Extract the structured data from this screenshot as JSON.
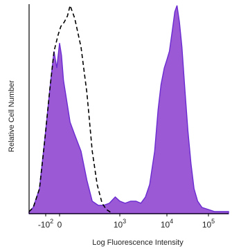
{
  "chart_data": {
    "type": "area",
    "title": "",
    "xlabel": "Log Fluorescence Intensity",
    "ylabel": "Relative Cell Number",
    "x_scale": "biexponential",
    "xlim": [
      -300,
      300000
    ],
    "ylim": [
      0,
      100
    ],
    "grid": false,
    "legend": "none",
    "x_ticks": [
      {
        "value": -100,
        "base": "-10",
        "exp": "2"
      },
      {
        "value": 0,
        "base": "0",
        "exp": ""
      },
      {
        "value": 1000,
        "base": "10",
        "exp": "3"
      },
      {
        "value": 10000,
        "base": "10",
        "exp": "4"
      },
      {
        "value": 100000,
        "base": "10",
        "exp": "5"
      }
    ],
    "series": [
      {
        "style": "filled",
        "color": "#9b59d6",
        "edge_color": "#6a2bd0",
        "points": [
          [
            -290,
            1
          ],
          [
            -220,
            3
          ],
          [
            -160,
            12
          ],
          [
            -100,
            40
          ],
          [
            -70,
            60
          ],
          [
            -40,
            78
          ],
          [
            -20,
            70
          ],
          [
            0,
            82
          ],
          [
            15,
            76
          ],
          [
            30,
            64
          ],
          [
            50,
            56
          ],
          [
            80,
            44
          ],
          [
            110,
            38
          ],
          [
            150,
            30
          ],
          [
            200,
            16
          ],
          [
            260,
            6
          ],
          [
            350,
            4
          ],
          [
            450,
            4
          ],
          [
            600,
            5
          ],
          [
            800,
            8
          ],
          [
            1000,
            6
          ],
          [
            1300,
            5
          ],
          [
            1700,
            6
          ],
          [
            2200,
            6
          ],
          [
            2800,
            5
          ],
          [
            3500,
            8
          ],
          [
            4300,
            14
          ],
          [
            5500,
            30
          ],
          [
            6500,
            50
          ],
          [
            7500,
            62
          ],
          [
            8800,
            70
          ],
          [
            10000,
            74
          ],
          [
            11500,
            78
          ],
          [
            13500,
            88
          ],
          [
            15500,
            97
          ],
          [
            17500,
            100
          ],
          [
            20000,
            92
          ],
          [
            23000,
            80
          ],
          [
            27000,
            60
          ],
          [
            32000,
            40
          ],
          [
            38000,
            24
          ],
          [
            45000,
            12
          ],
          [
            55000,
            6
          ],
          [
            70000,
            3
          ],
          [
            100000,
            2
          ],
          [
            140000,
            1
          ],
          [
            300000,
            1
          ]
        ]
      },
      {
        "style": "dashed",
        "color": "#000000",
        "points": [
          [
            -290,
            1
          ],
          [
            -220,
            3
          ],
          [
            -160,
            12
          ],
          [
            -110,
            35
          ],
          [
            -70,
            60
          ],
          [
            -40,
            78
          ],
          [
            -10,
            86
          ],
          [
            10,
            90
          ],
          [
            35,
            92
          ],
          [
            60,
            95
          ],
          [
            80,
            100
          ],
          [
            110,
            94
          ],
          [
            150,
            80
          ],
          [
            200,
            58
          ],
          [
            260,
            30
          ],
          [
            330,
            14
          ],
          [
            420,
            5
          ],
          [
            520,
            2
          ],
          [
            700,
            0
          ]
        ]
      }
    ]
  }
}
